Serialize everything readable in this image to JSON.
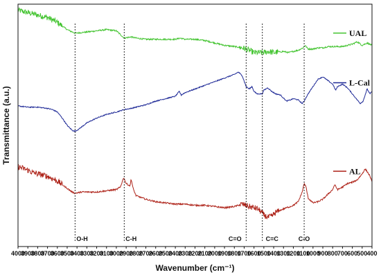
{
  "chart_data": {
    "type": "line",
    "title": "",
    "xlabel": "Wavenumber (cm⁻¹)",
    "ylabel": "Transmittance (a.u.)",
    "x_reversed": true,
    "xlim": [
      4000,
      400
    ],
    "ylim": [
      0,
      1
    ],
    "y_ticks_shown": false,
    "grid": false,
    "legend_placement": "right, next to each curve",
    "x_ticks": [
      "4000",
      "3900",
      "3800",
      "3700",
      "3600",
      "3500",
      "3400",
      "3300",
      "3200",
      "3100",
      "3000",
      "2900",
      "2800",
      "2700",
      "2600",
      "2500",
      "2400",
      "2300",
      "2200",
      "2100",
      "2000",
      "1900",
      "1800",
      "1700",
      "1600",
      "1500",
      "1400",
      "1300",
      "1200",
      "1100",
      "1000",
      "900",
      "800",
      "700",
      "600",
      "500",
      "400"
    ],
    "series": [
      {
        "name": "UAL",
        "color": "#44c431",
        "noise": "high",
        "points": [
          [
            4000,
            0.975
          ],
          [
            3900,
            0.965
          ],
          [
            3800,
            0.955
          ],
          [
            3700,
            0.945
          ],
          [
            3600,
            0.925
          ],
          [
            3500,
            0.895
          ],
          [
            3420,
            0.88
          ],
          [
            3300,
            0.885
          ],
          [
            3200,
            0.89
          ],
          [
            3100,
            0.895
          ],
          [
            3000,
            0.89
          ],
          [
            2920,
            0.86
          ],
          [
            2850,
            0.865
          ],
          [
            2800,
            0.86
          ],
          [
            2700,
            0.855
          ],
          [
            2600,
            0.855
          ],
          [
            2500,
            0.855
          ],
          [
            2400,
            0.855
          ],
          [
            2350,
            0.86
          ],
          [
            2300,
            0.855
          ],
          [
            2200,
            0.855
          ],
          [
            2100,
            0.85
          ],
          [
            2000,
            0.84
          ],
          [
            1900,
            0.83
          ],
          [
            1800,
            0.825
          ],
          [
            1720,
            0.82
          ],
          [
            1650,
            0.81
          ],
          [
            1600,
            0.8
          ],
          [
            1550,
            0.8
          ],
          [
            1500,
            0.8
          ],
          [
            1450,
            0.805
          ],
          [
            1400,
            0.8
          ],
          [
            1300,
            0.805
          ],
          [
            1250,
            0.8
          ],
          [
            1200,
            0.805
          ],
          [
            1150,
            0.81
          ],
          [
            1100,
            0.82
          ],
          [
            1080,
            0.83
          ],
          [
            1050,
            0.815
          ],
          [
            1000,
            0.815
          ],
          [
            950,
            0.82
          ],
          [
            900,
            0.82
          ],
          [
            850,
            0.825
          ],
          [
            800,
            0.825
          ],
          [
            750,
            0.825
          ],
          [
            700,
            0.825
          ],
          [
            650,
            0.83
          ],
          [
            600,
            0.835
          ],
          [
            550,
            0.845
          ],
          [
            500,
            0.83
          ],
          [
            450,
            0.84
          ],
          [
            400,
            0.83
          ]
        ]
      },
      {
        "name": "L-Cal",
        "color": "#1d2896",
        "noise": "low",
        "points": [
          [
            4000,
            0.58
          ],
          [
            3900,
            0.575
          ],
          [
            3800,
            0.575
          ],
          [
            3700,
            0.57
          ],
          [
            3650,
            0.565
          ],
          [
            3600,
            0.555
          ],
          [
            3550,
            0.53
          ],
          [
            3500,
            0.5
          ],
          [
            3450,
            0.48
          ],
          [
            3420,
            0.475
          ],
          [
            3380,
            0.485
          ],
          [
            3300,
            0.51
          ],
          [
            3200,
            0.53
          ],
          [
            3100,
            0.545
          ],
          [
            3000,
            0.555
          ],
          [
            2960,
            0.56
          ],
          [
            2920,
            0.565
          ],
          [
            2850,
            0.57
          ],
          [
            2800,
            0.575
          ],
          [
            2700,
            0.585
          ],
          [
            2600,
            0.6
          ],
          [
            2500,
            0.61
          ],
          [
            2400,
            0.62
          ],
          [
            2360,
            0.64
          ],
          [
            2340,
            0.625
          ],
          [
            2300,
            0.635
          ],
          [
            2200,
            0.65
          ],
          [
            2100,
            0.665
          ],
          [
            2000,
            0.68
          ],
          [
            1900,
            0.695
          ],
          [
            1800,
            0.71
          ],
          [
            1760,
            0.72
          ],
          [
            1720,
            0.705
          ],
          [
            1680,
            0.66
          ],
          [
            1650,
            0.65
          ],
          [
            1620,
            0.66
          ],
          [
            1600,
            0.64
          ],
          [
            1570,
            0.63
          ],
          [
            1515,
            0.63
          ],
          [
            1500,
            0.645
          ],
          [
            1460,
            0.655
          ],
          [
            1420,
            0.64
          ],
          [
            1380,
            0.63
          ],
          [
            1330,
            0.625
          ],
          [
            1270,
            0.6
          ],
          [
            1230,
            0.605
          ],
          [
            1200,
            0.61
          ],
          [
            1150,
            0.605
          ],
          [
            1110,
            0.59
          ],
          [
            1090,
            0.6
          ],
          [
            1050,
            0.63
          ],
          [
            1000,
            0.66
          ],
          [
            950,
            0.69
          ],
          [
            900,
            0.7
          ],
          [
            850,
            0.685
          ],
          [
            800,
            0.67
          ],
          [
            770,
            0.645
          ],
          [
            750,
            0.66
          ],
          [
            700,
            0.67
          ],
          [
            650,
            0.655
          ],
          [
            600,
            0.63
          ],
          [
            560,
            0.61
          ],
          [
            520,
            0.59
          ],
          [
            490,
            0.6
          ],
          [
            450,
            0.65
          ],
          [
            420,
            0.63
          ],
          [
            400,
            0.64
          ]
        ]
      },
      {
        "name": "AL",
        "color": "#ae2319",
        "noise": "high",
        "points": [
          [
            4000,
            0.33
          ],
          [
            3900,
            0.315
          ],
          [
            3850,
            0.305
          ],
          [
            3800,
            0.3
          ],
          [
            3700,
            0.29
          ],
          [
            3650,
            0.28
          ],
          [
            3600,
            0.27
          ],
          [
            3550,
            0.255
          ],
          [
            3500,
            0.24
          ],
          [
            3450,
            0.225
          ],
          [
            3420,
            0.22
          ],
          [
            3350,
            0.225
          ],
          [
            3300,
            0.225
          ],
          [
            3200,
            0.225
          ],
          [
            3100,
            0.23
          ],
          [
            3000,
            0.235
          ],
          [
            2960,
            0.245
          ],
          [
            2925,
            0.285
          ],
          [
            2900,
            0.26
          ],
          [
            2860,
            0.25
          ],
          [
            2850,
            0.28
          ],
          [
            2830,
            0.24
          ],
          [
            2800,
            0.21
          ],
          [
            2700,
            0.195
          ],
          [
            2600,
            0.185
          ],
          [
            2500,
            0.18
          ],
          [
            2400,
            0.175
          ],
          [
            2300,
            0.175
          ],
          [
            2200,
            0.17
          ],
          [
            2100,
            0.17
          ],
          [
            2000,
            0.165
          ],
          [
            1900,
            0.16
          ],
          [
            1800,
            0.165
          ],
          [
            1720,
            0.175
          ],
          [
            1650,
            0.165
          ],
          [
            1600,
            0.16
          ],
          [
            1560,
            0.155
          ],
          [
            1520,
            0.14
          ],
          [
            1500,
            0.13
          ],
          [
            1460,
            0.12
          ],
          [
            1420,
            0.125
          ],
          [
            1380,
            0.14
          ],
          [
            1330,
            0.15
          ],
          [
            1270,
            0.16
          ],
          [
            1230,
            0.165
          ],
          [
            1200,
            0.17
          ],
          [
            1150,
            0.185
          ],
          [
            1110,
            0.225
          ],
          [
            1090,
            0.26
          ],
          [
            1070,
            0.245
          ],
          [
            1050,
            0.2
          ],
          [
            1000,
            0.18
          ],
          [
            950,
            0.185
          ],
          [
            900,
            0.195
          ],
          [
            850,
            0.215
          ],
          [
            800,
            0.235
          ],
          [
            780,
            0.255
          ],
          [
            750,
            0.235
          ],
          [
            700,
            0.245
          ],
          [
            650,
            0.26
          ],
          [
            600,
            0.265
          ],
          [
            550,
            0.275
          ],
          [
            500,
            0.3
          ],
          [
            470,
            0.32
          ],
          [
            450,
            0.31
          ],
          [
            420,
            0.29
          ],
          [
            400,
            0.265
          ]
        ]
      }
    ],
    "annotations": [
      {
        "label": "O-H",
        "x": 3420
      },
      {
        "label": "C-H",
        "x": 2920
      },
      {
        "label": "C=O",
        "x": 1680
      },
      {
        "label": "C=C",
        "x": 1515
      },
      {
        "label": "C-O",
        "x": 1090
      }
    ]
  }
}
